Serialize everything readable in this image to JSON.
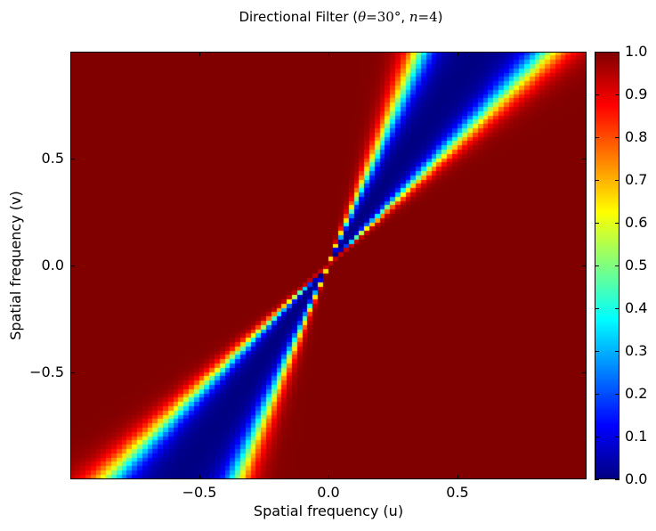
{
  "chart_data": {
    "type": "heatmap",
    "title": "Directional Filter (θ=30°, n=4)",
    "title_parts": {
      "prefix": "Directional Filter (",
      "theta_symbol": "θ",
      "theta_value": "=30°",
      "separator": ", ",
      "n_symbol": "n",
      "n_value": "=4",
      "suffix": ")"
    },
    "xlabel": "Spatial frequency (u)",
    "ylabel": "Spatial frequency (v)",
    "xlim": [
      -1.0,
      1.0
    ],
    "ylim": [
      -1.0,
      1.0
    ],
    "x_ticks": [
      {
        "value": -0.5,
        "label": "−0.5"
      },
      {
        "value": 0.0,
        "label": "0.0"
      },
      {
        "value": 0.5,
        "label": "0.5"
      }
    ],
    "y_ticks": [
      {
        "value": -0.5,
        "label": "−0.5"
      },
      {
        "value": 0.0,
        "label": "0.0"
      },
      {
        "value": 0.5,
        "label": "0.5"
      }
    ],
    "colormap": "jet",
    "colorbar": {
      "range": [
        0.0,
        1.0
      ],
      "ticks": [
        {
          "value": 0.0,
          "label": "0.0"
        },
        {
          "value": 0.1,
          "label": "0.1"
        },
        {
          "value": 0.2,
          "label": "0.2"
        },
        {
          "value": 0.3,
          "label": "0.3"
        },
        {
          "value": 0.4,
          "label": "0.4"
        },
        {
          "value": 0.5,
          "label": "0.5"
        },
        {
          "value": 0.6,
          "label": "0.6"
        },
        {
          "value": 0.7,
          "label": "0.7"
        },
        {
          "value": 0.8,
          "label": "0.8"
        },
        {
          "value": 0.9,
          "label": "0.9"
        },
        {
          "value": 1.0,
          "label": "1.0"
        }
      ]
    },
    "filter": {
      "direction_deg": 30,
      "exponent": 4,
      "stop_band_center_deg": 60,
      "stop_band_halfwidth_deg": 10.5,
      "transition_deg": 3.8,
      "value_inside_band": 0.0,
      "value_outside_band": 1.0
    },
    "grid": false
  }
}
